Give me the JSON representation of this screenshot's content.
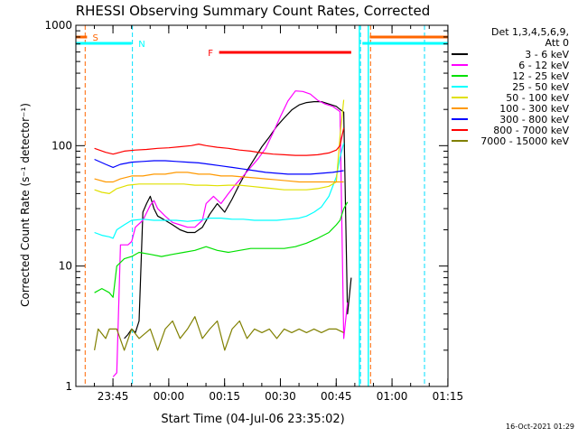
{
  "chart_data": {
    "type": "line",
    "title": "RHESSI Observing Summary Count Rates, Corrected",
    "xlabel": "Start Time (04-Jul-06 23:35:02)",
    "ylabel": "Corrected Count Rate (s⁻¹ detector⁻¹)",
    "ylim": [
      1,
      1000
    ],
    "yscale": "log",
    "xlim_minutes": [
      0,
      100
    ],
    "x_ticks": [
      {
        "label": "23:45",
        "t": 9.97
      },
      {
        "label": "00:00",
        "t": 24.97
      },
      {
        "label": "00:15",
        "t": 39.97
      },
      {
        "label": "00:30",
        "t": 54.97
      },
      {
        "label": "00:45",
        "t": 69.97
      },
      {
        "label": "01:00",
        "t": 84.97
      },
      {
        "label": "01:15",
        "t": 99.97
      }
    ],
    "y_ticks": [
      {
        "label": "1",
        "v": 1
      },
      {
        "label": "10",
        "v": 10
      },
      {
        "label": "100",
        "v": 100
      },
      {
        "label": "1000",
        "v": 1000
      }
    ],
    "legend_header": [
      "Det 1,3,4,5,6,9,",
      "Att 0"
    ],
    "legend_position": "right",
    "timestamp": "16-Oct-2021 01:29",
    "flag_labels": {
      "S": "S",
      "N": "N",
      "F": "F"
    },
    "series": [
      {
        "name": "3 - 6 keV",
        "color": "#000000",
        "points": [
          [
            13,
            2.5
          ],
          [
            14,
            2.7
          ],
          [
            15,
            3
          ],
          [
            16,
            2.8
          ],
          [
            17,
            3.5
          ],
          [
            18,
            28
          ],
          [
            19,
            33
          ],
          [
            20,
            38
          ],
          [
            21,
            30
          ],
          [
            22,
            26
          ],
          [
            24,
            24
          ],
          [
            26,
            22
          ],
          [
            28,
            20
          ],
          [
            30,
            19
          ],
          [
            32,
            19
          ],
          [
            34,
            21
          ],
          [
            36,
            27
          ],
          [
            38,
            33
          ],
          [
            40,
            28
          ],
          [
            42,
            36
          ],
          [
            44,
            48
          ],
          [
            46,
            62
          ],
          [
            48,
            78
          ],
          [
            50,
            98
          ],
          [
            52,
            118
          ],
          [
            54,
            145
          ],
          [
            56,
            170
          ],
          [
            58,
            198
          ],
          [
            60,
            218
          ],
          [
            62,
            228
          ],
          [
            64,
            232
          ],
          [
            66,
            232
          ],
          [
            68,
            222
          ],
          [
            70,
            212
          ],
          [
            71,
            200
          ],
          [
            72,
            190
          ],
          [
            73,
            4
          ],
          [
            74,
            8
          ]
        ]
      },
      {
        "name": "6 - 12 keV",
        "color": "#ff00ff",
        "points": [
          [
            10,
            1.2
          ],
          [
            11,
            1.3
          ],
          [
            12,
            15
          ],
          [
            14,
            15
          ],
          [
            15,
            16
          ],
          [
            16,
            21
          ],
          [
            18,
            24
          ],
          [
            20,
            32
          ],
          [
            21,
            35
          ],
          [
            22,
            30
          ],
          [
            24,
            26
          ],
          [
            26,
            23
          ],
          [
            28,
            22
          ],
          [
            30,
            21
          ],
          [
            32,
            21
          ],
          [
            34,
            24
          ],
          [
            35,
            33
          ],
          [
            37,
            38
          ],
          [
            39,
            33
          ],
          [
            41,
            40
          ],
          [
            43,
            48
          ],
          [
            45,
            56
          ],
          [
            47,
            66
          ],
          [
            49,
            78
          ],
          [
            51,
            95
          ],
          [
            53,
            128
          ],
          [
            55,
            175
          ],
          [
            57,
            235
          ],
          [
            59,
            285
          ],
          [
            61,
            282
          ],
          [
            63,
            268
          ],
          [
            65,
            238
          ],
          [
            67,
            222
          ],
          [
            69,
            212
          ],
          [
            71,
            192
          ],
          [
            72,
            2.5
          ],
          [
            73,
            5
          ]
        ]
      },
      {
        "name": "12 - 25 keV",
        "color": "#00e000",
        "points": [
          [
            5,
            6
          ],
          [
            7,
            6.5
          ],
          [
            9,
            6
          ],
          [
            10,
            5.5
          ],
          [
            11,
            10
          ],
          [
            13,
            11.5
          ],
          [
            15,
            12
          ],
          [
            17,
            13
          ],
          [
            20,
            12.5
          ],
          [
            23,
            12
          ],
          [
            26,
            12.5
          ],
          [
            29,
            13
          ],
          [
            32,
            13.5
          ],
          [
            35,
            14.5
          ],
          [
            38,
            13.5
          ],
          [
            41,
            13
          ],
          [
            44,
            13.5
          ],
          [
            47,
            14
          ],
          [
            50,
            14
          ],
          [
            53,
            14
          ],
          [
            56,
            14
          ],
          [
            59,
            14.5
          ],
          [
            62,
            15.5
          ],
          [
            65,
            17
          ],
          [
            68,
            19
          ],
          [
            70,
            22
          ],
          [
            71,
            24
          ],
          [
            72,
            30
          ],
          [
            73,
            34
          ]
        ]
      },
      {
        "name": "25 - 50 keV",
        "color": "#00ffff",
        "points": [
          [
            5,
            19
          ],
          [
            7,
            18
          ],
          [
            9,
            17.5
          ],
          [
            10,
            17
          ],
          [
            11,
            20
          ],
          [
            13,
            22
          ],
          [
            15,
            24
          ],
          [
            18,
            24.5
          ],
          [
            21,
            24
          ],
          [
            24,
            24
          ],
          [
            27,
            24
          ],
          [
            30,
            23.5
          ],
          [
            33,
            24
          ],
          [
            36,
            25
          ],
          [
            39,
            25
          ],
          [
            42,
            24.5
          ],
          [
            45,
            24.5
          ],
          [
            48,
            24
          ],
          [
            51,
            24
          ],
          [
            54,
            24
          ],
          [
            57,
            24.5
          ],
          [
            60,
            25
          ],
          [
            62,
            26
          ],
          [
            64,
            28
          ],
          [
            66,
            31
          ],
          [
            68,
            38
          ],
          [
            70,
            55
          ],
          [
            71,
            80
          ],
          [
            72,
            105
          ]
        ]
      },
      {
        "name": "50 - 100 keV",
        "color": "#e0e000",
        "points": [
          [
            5,
            43
          ],
          [
            7,
            41
          ],
          [
            9,
            40
          ],
          [
            11,
            44
          ],
          [
            14,
            47
          ],
          [
            17,
            48
          ],
          [
            20,
            48
          ],
          [
            23,
            48
          ],
          [
            26,
            48
          ],
          [
            29,
            48
          ],
          [
            32,
            47
          ],
          [
            35,
            47
          ],
          [
            38,
            46.5
          ],
          [
            41,
            47
          ],
          [
            44,
            47
          ],
          [
            47,
            46
          ],
          [
            50,
            45
          ],
          [
            53,
            44
          ],
          [
            56,
            43
          ],
          [
            59,
            43
          ],
          [
            62,
            43
          ],
          [
            65,
            44
          ],
          [
            68,
            46
          ],
          [
            70,
            50
          ],
          [
            71,
            120
          ],
          [
            72,
            240
          ]
        ]
      },
      {
        "name": "100 - 300 keV",
        "color": "#ff9900",
        "points": [
          [
            5,
            53
          ],
          [
            8,
            50
          ],
          [
            10,
            50
          ],
          [
            12,
            53
          ],
          [
            15,
            56
          ],
          [
            18,
            56
          ],
          [
            21,
            58
          ],
          [
            24,
            58
          ],
          [
            27,
            60
          ],
          [
            30,
            60
          ],
          [
            33,
            58
          ],
          [
            36,
            58
          ],
          [
            39,
            56
          ],
          [
            42,
            56
          ],
          [
            45,
            55
          ],
          [
            48,
            54
          ],
          [
            51,
            53
          ],
          [
            54,
            52
          ],
          [
            57,
            51
          ],
          [
            60,
            50
          ],
          [
            63,
            50
          ],
          [
            66,
            50
          ],
          [
            69,
            50
          ],
          [
            72,
            50
          ]
        ]
      },
      {
        "name": "300 - 800 keV",
        "color": "#0000ff",
        "points": [
          [
            5,
            77
          ],
          [
            8,
            70
          ],
          [
            10,
            66
          ],
          [
            12,
            70
          ],
          [
            15,
            73
          ],
          [
            18,
            74
          ],
          [
            21,
            75
          ],
          [
            24,
            75
          ],
          [
            27,
            74
          ],
          [
            30,
            73
          ],
          [
            33,
            72
          ],
          [
            36,
            70
          ],
          [
            39,
            68
          ],
          [
            42,
            66
          ],
          [
            45,
            64
          ],
          [
            48,
            62
          ],
          [
            51,
            60
          ],
          [
            54,
            59
          ],
          [
            57,
            58
          ],
          [
            60,
            58
          ],
          [
            63,
            58
          ],
          [
            66,
            59
          ],
          [
            69,
            60
          ],
          [
            72,
            62
          ]
        ]
      },
      {
        "name": "800 - 7000 keV",
        "color": "#ff0000",
        "points": [
          [
            5,
            95
          ],
          [
            8,
            88
          ],
          [
            10,
            85
          ],
          [
            13,
            90
          ],
          [
            16,
            92
          ],
          [
            19,
            93
          ],
          [
            22,
            95
          ],
          [
            25,
            96
          ],
          [
            28,
            98
          ],
          [
            31,
            100
          ],
          [
            33,
            103
          ],
          [
            35,
            100
          ],
          [
            38,
            97
          ],
          [
            41,
            95
          ],
          [
            44,
            92
          ],
          [
            47,
            90
          ],
          [
            50,
            87
          ],
          [
            53,
            85
          ],
          [
            56,
            84
          ],
          [
            59,
            83
          ],
          [
            62,
            83
          ],
          [
            65,
            84
          ],
          [
            68,
            87
          ],
          [
            70,
            92
          ],
          [
            71,
            100
          ],
          [
            72,
            140
          ]
        ]
      },
      {
        "name": "7000 - 15000 keV",
        "color": "#808000",
        "points": [
          [
            5,
            2
          ],
          [
            6,
            3
          ],
          [
            8,
            2.5
          ],
          [
            9,
            3
          ],
          [
            11,
            3
          ],
          [
            13,
            2
          ],
          [
            15,
            3
          ],
          [
            17,
            2.5
          ],
          [
            20,
            3
          ],
          [
            22,
            2
          ],
          [
            24,
            3
          ],
          [
            26,
            3.5
          ],
          [
            28,
            2.5
          ],
          [
            30,
            3
          ],
          [
            32,
            3.8
          ],
          [
            34,
            2.5
          ],
          [
            36,
            3
          ],
          [
            38,
            3.5
          ],
          [
            40,
            2
          ],
          [
            42,
            3
          ],
          [
            44,
            3.5
          ],
          [
            46,
            2.5
          ],
          [
            48,
            3
          ],
          [
            50,
            2.8
          ],
          [
            52,
            3
          ],
          [
            54,
            2.5
          ],
          [
            56,
            3
          ],
          [
            58,
            2.8
          ],
          [
            60,
            3
          ],
          [
            62,
            2.8
          ],
          [
            64,
            3
          ],
          [
            66,
            2.8
          ],
          [
            68,
            3
          ],
          [
            70,
            3
          ],
          [
            72,
            2.8
          ]
        ]
      }
    ]
  }
}
